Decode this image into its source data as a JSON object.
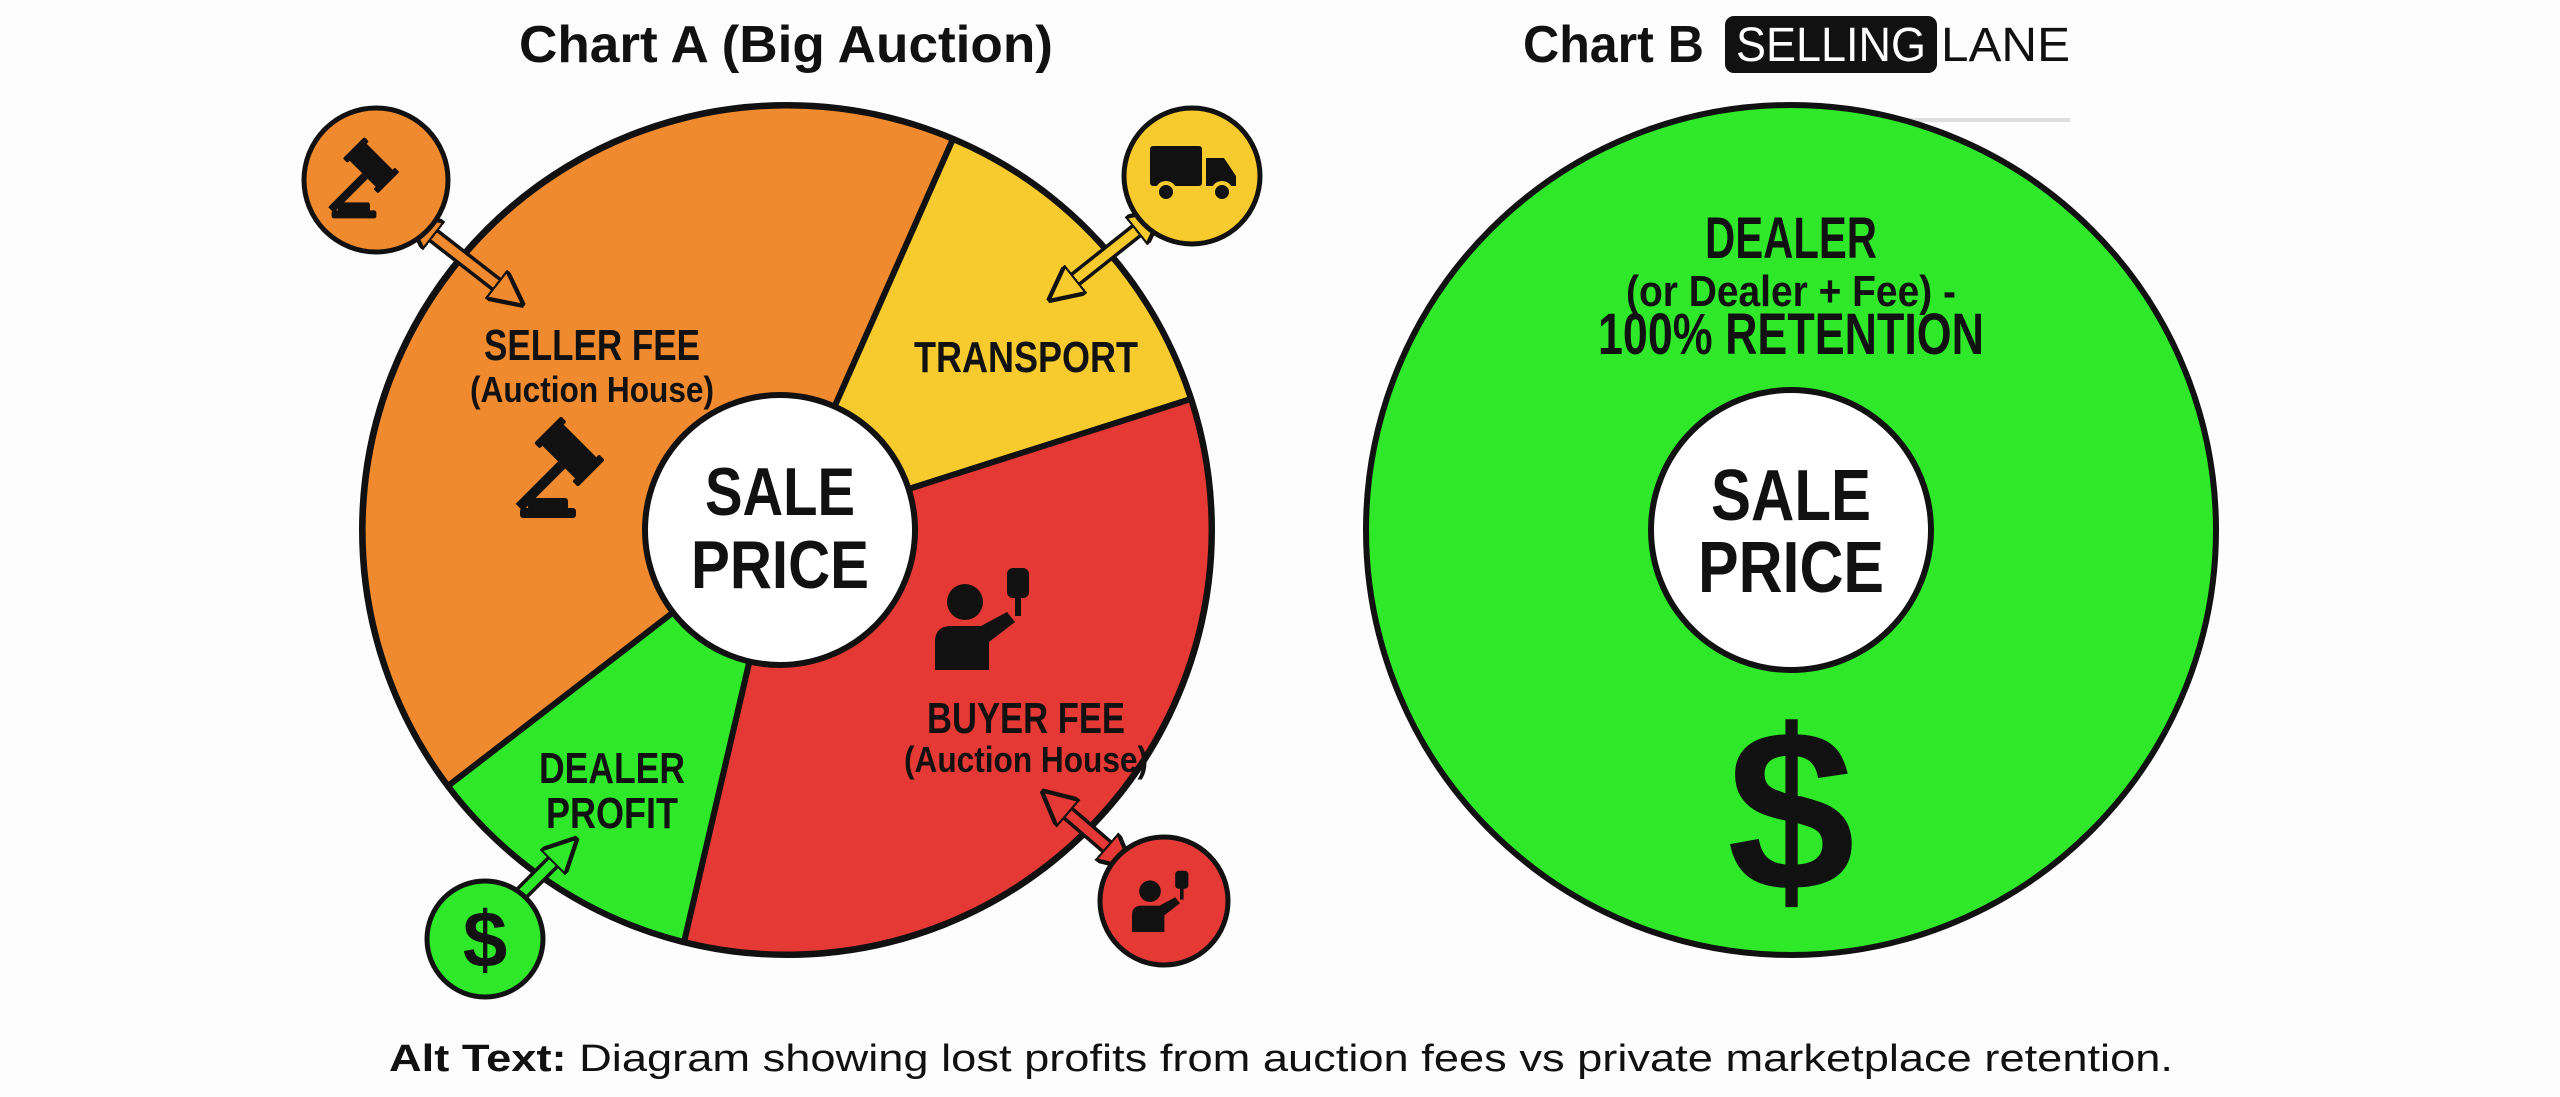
{
  "chart_a": {
    "title": "Chart A (Big Auction)",
    "center": {
      "line1": "SALE",
      "line2": "PRICE"
    },
    "segments": [
      {
        "label": "SELLER FEE",
        "sublabel": "(Auction House)",
        "color": "#F08A2E",
        "icon": "gavel-icon"
      },
      {
        "label": "TRANSPORT",
        "color": "#F7CB2D",
        "icon": "truck-icon"
      },
      {
        "label": "BUYER FEE",
        "sublabel": "(Auction House)",
        "color": "#E53935",
        "icon": "bidder-icon"
      },
      {
        "label_line1": "DEALER",
        "label_line2": "PROFIT",
        "color": "#2FE82A",
        "icon": "dollar-icon",
        "dollar": "$"
      }
    ]
  },
  "chart_b": {
    "title": "Chart B",
    "logo": {
      "part1": "SELLING",
      "part2": "LANE"
    },
    "center": {
      "line1": "SALE",
      "line2": "PRICE"
    },
    "segment": {
      "line1": "DEALER",
      "line2": "(or Dealer + Fee) -",
      "line3": "100% RETENTION",
      "color": "#2FE82A"
    },
    "dollar": "$"
  },
  "caption": {
    "label": "Alt Text:",
    "text": " Diagram showing lost profits from auction fees vs private marketplace retention."
  }
}
